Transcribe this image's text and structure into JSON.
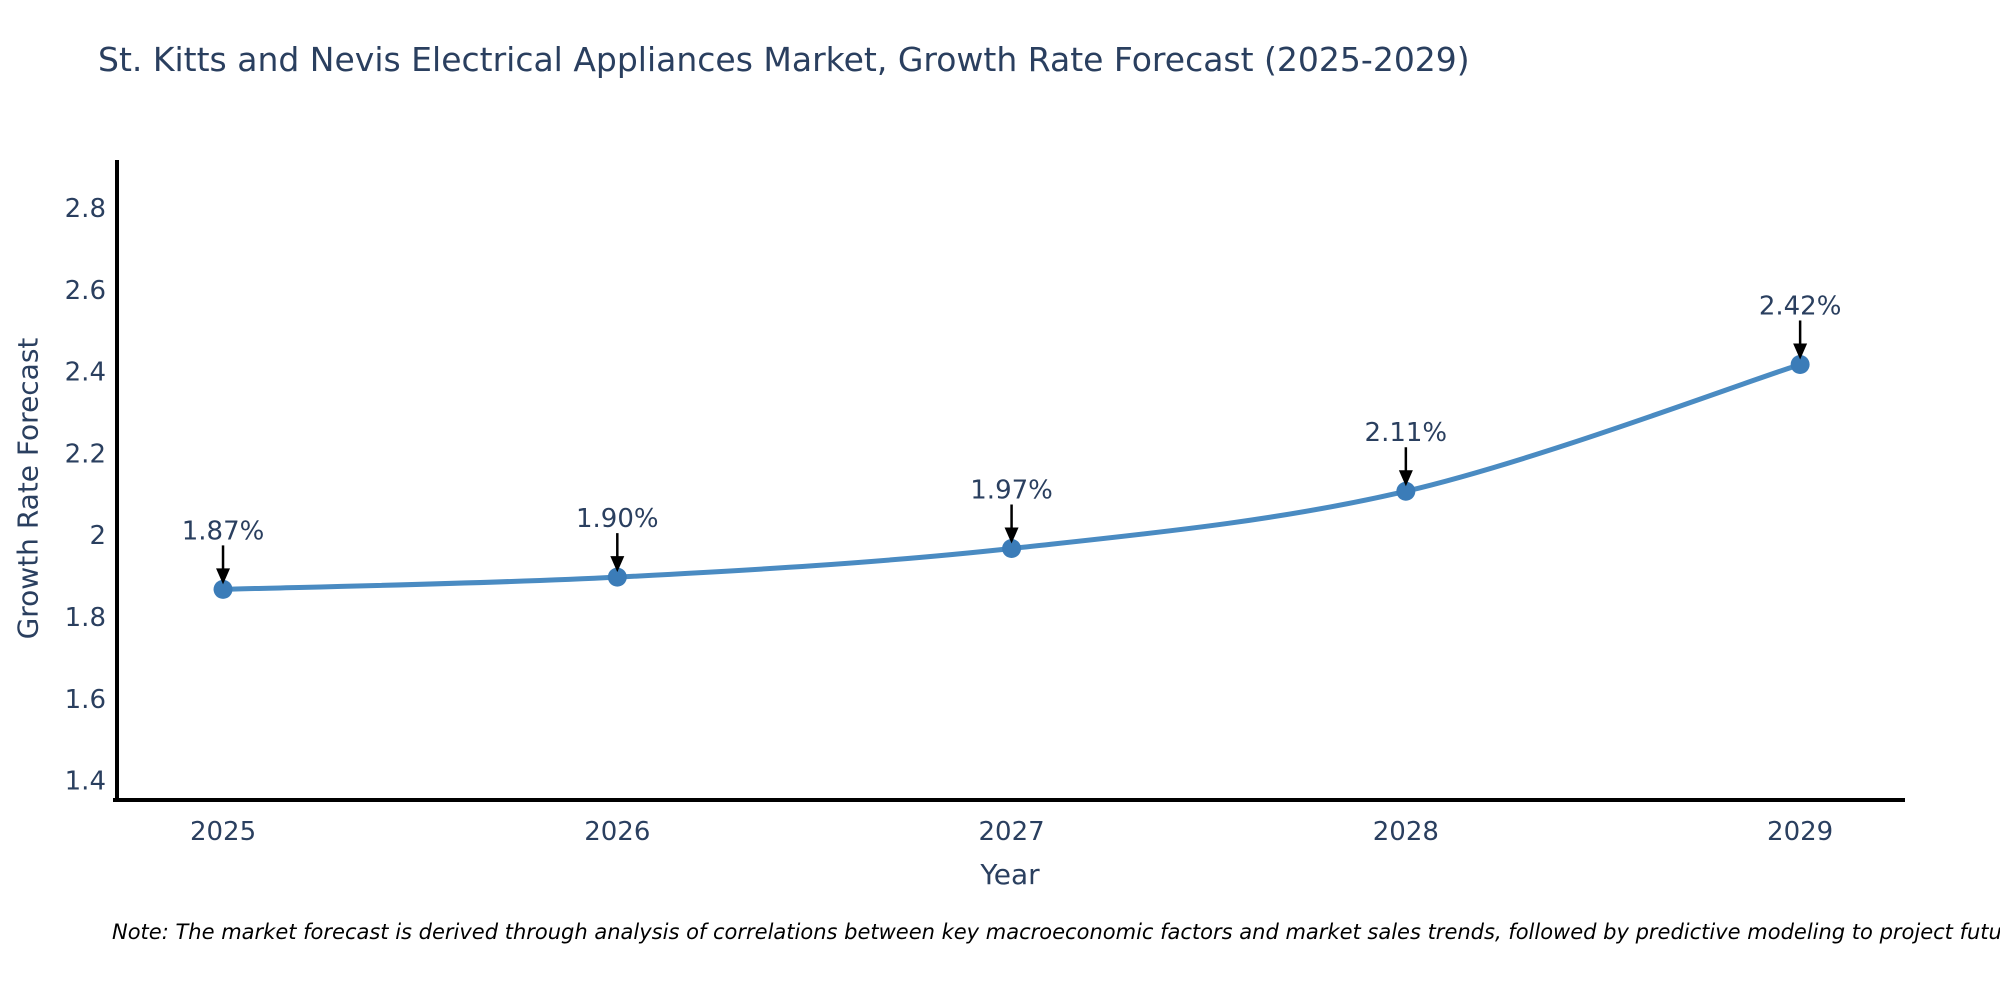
{
  "title": "St. Kitts and Nevis Electrical Appliances Market, Growth Rate Forecast (2025-2029)",
  "note": "Note: The market forecast is derived through analysis of correlations between key macroeconomic factors and market sales trends, followed by predictive modeling to project future sales",
  "chart_data": {
    "type": "line",
    "title": "St. Kitts and Nevis Electrical Appliances Market, Growth Rate Forecast (2025-2029)",
    "xlabel": "Year",
    "ylabel": "Growth Rate Forecast",
    "x": [
      2025,
      2026,
      2027,
      2028,
      2029
    ],
    "categories": [
      "2025",
      "2026",
      "2027",
      "2028",
      "2029"
    ],
    "series": [
      {
        "name": "Growth Rate Forecast",
        "values": [
          1.87,
          1.9,
          1.97,
          2.11,
          2.42
        ]
      }
    ],
    "point_labels": [
      "1.87%",
      "1.90%",
      "1.97%",
      "2.11%",
      "2.42%"
    ],
    "yticks": [
      1.4,
      1.6,
      1.8,
      2.0,
      2.2,
      2.4,
      2.6,
      2.8
    ],
    "ytick_labels": [
      "1.4",
      "1.6",
      "1.8",
      "2",
      "2.2",
      "2.4",
      "2.6",
      "2.8"
    ],
    "ylim": [
      1.355,
      2.92
    ],
    "xlim": [
      2024.726,
      2029.266
    ],
    "grid": false,
    "legend_position": "none",
    "line_shape": "spline",
    "colors": {
      "line": "#4a8bc2",
      "marker": "#3b7cb8",
      "axis_line": "#000000",
      "text": "#2a3f5f",
      "arrow": "#000000",
      "note_text": "#000000",
      "background": "#ffffff"
    }
  }
}
